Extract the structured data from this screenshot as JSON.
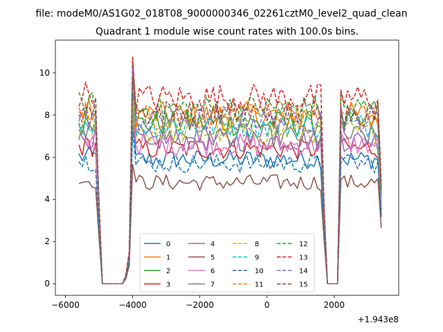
{
  "chart_data": {
    "type": "line",
    "suptitle": "file: modeM0/AS1G02_018T08_9000000346_02261cztM0_level2_quad_clean",
    "title": "Quadrant 1 module wise count rates with 100.0s bins.",
    "xlabel": "",
    "ylabel": "",
    "offset_text": "+1.943e8",
    "xlim": [
      -6300,
      3920
    ],
    "ylim": [
      -0.55,
      11.55
    ],
    "x_ticks": [
      -6000,
      -4000,
      -2000,
      0,
      2000
    ],
    "x_tick_labels": [
      "−6000",
      "−4000",
      "−2000",
      "0",
      "2000"
    ],
    "y_ticks": [
      0,
      2,
      4,
      6,
      8,
      10
    ],
    "y_tick_labels": [
      "0",
      "2",
      "4",
      "6",
      "8",
      "10"
    ],
    "grid": false,
    "legend": {
      "placement": "lower center",
      "columns": 4
    },
    "segments": [
      {
        "x_start": -5600,
        "x_end": -5100,
        "step": 100
      },
      {
        "x_start": -4000,
        "x_end": 1600,
        "step": 100
      },
      {
        "x_start": 2200,
        "x_end": 3400,
        "step": 100
      }
    ],
    "gap_points": {
      "x": [
        -5000,
        -4900,
        -4800,
        -4700,
        -4600,
        -4500,
        -4400,
        -4300,
        -4200,
        -4100,
        1700,
        1800,
        1900,
        2000,
        2100
      ],
      "relative_level": [
        0.45,
        0,
        0,
        0,
        0,
        0,
        0,
        0,
        0.05,
        0.18,
        0.42,
        0,
        0,
        0,
        0
      ]
    },
    "edge_factors": {
      "start_spike": 1.42,
      "end_drop": 0.55,
      "left_shoulder": 1.02
    },
    "noise_amplitude_fraction": 0.05,
    "series": [
      {
        "name": "0",
        "level": 5.9,
        "color": "#1f77b4",
        "dash": "solid"
      },
      {
        "name": "1",
        "level": 8.0,
        "color": "#ff7f0e",
        "dash": "solid"
      },
      {
        "name": "2",
        "level": 7.6,
        "color": "#2ca02c",
        "dash": "solid"
      },
      {
        "name": "3",
        "level": 6.4,
        "color": "#d62728",
        "dash": "solid"
      },
      {
        "name": "4",
        "level": 6.8,
        "color": "#9467bd",
        "dash": "solid"
      },
      {
        "name": "5",
        "level": 4.8,
        "color": "#8c564b",
        "dash": "solid"
      },
      {
        "name": "6",
        "level": 6.6,
        "color": "#e377c2",
        "dash": "solid"
      },
      {
        "name": "7",
        "level": 7.0,
        "color": "#7f7f7f",
        "dash": "solid"
      },
      {
        "name": "8",
        "level": 7.2,
        "color": "#bcbd22",
        "dash": "dashed"
      },
      {
        "name": "9",
        "level": 7.5,
        "color": "#17becf",
        "dash": "dashed"
      },
      {
        "name": "10",
        "level": 5.7,
        "color": "#1f77b4",
        "dash": "dashed"
      },
      {
        "name": "11",
        "level": 7.9,
        "color": "#ff7f0e",
        "dash": "dashed"
      },
      {
        "name": "12",
        "level": 8.3,
        "color": "#2ca02c",
        "dash": "dashed"
      },
      {
        "name": "13",
        "level": 8.8,
        "color": "#d62728",
        "dash": "dashed"
      },
      {
        "name": "14",
        "level": 7.8,
        "color": "#9467bd",
        "dash": "dashed"
      },
      {
        "name": "15",
        "level": 8.1,
        "color": "#8c564b",
        "dash": "dashed"
      }
    ]
  }
}
